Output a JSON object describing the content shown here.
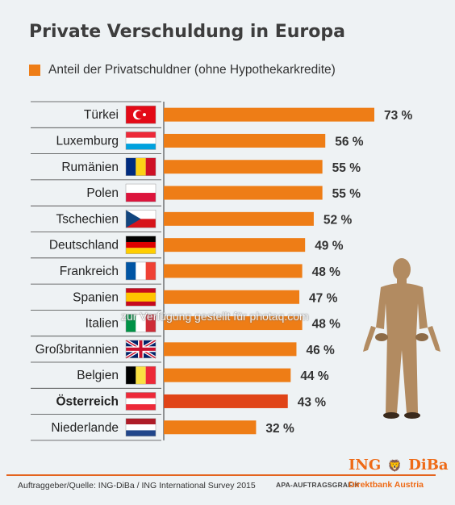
{
  "title": "Private Verschuldung in Europa",
  "legend_label": "Anteil der Privatschuldner (ohne Hypothekarkredite)",
  "colors": {
    "bar": "#ee7d16",
    "highlight_bar": "#e04418",
    "accent": "#ee6a16"
  },
  "chart_data": {
    "type": "bar",
    "orientation": "horizontal",
    "title": "Private Verschuldung in Europa",
    "series": [
      {
        "name": "Anteil der Privatschuldner (ohne Hypothekarkredite)",
        "values": [
          73,
          56,
          55,
          55,
          52,
          49,
          48,
          47,
          48,
          46,
          44,
          43,
          32
        ]
      }
    ],
    "categories": [
      "Türkei",
      "Luxemburg",
      "Rumänien",
      "Polen",
      "Tschechien",
      "Deutschland",
      "Frankreich",
      "Spanien",
      "Italien",
      "Großbritannien",
      "Belgien",
      "Österreich",
      "Niederlande"
    ],
    "value_labels": [
      "73 %",
      "56 %",
      "55 %",
      "55 %",
      "52 %",
      "49 %",
      "48 %",
      "47 %",
      "48 %",
      "46 %",
      "44 %",
      "43 %",
      "32 %"
    ],
    "highlight": "Österreich",
    "flags": [
      "flag-turkey-icon",
      "flag-luxembourg-icon",
      "flag-romania-icon",
      "flag-poland-icon",
      "flag-czech-icon",
      "flag-germany-icon",
      "flag-france-icon",
      "flag-spain-icon",
      "flag-italy-icon",
      "flag-uk-icon",
      "flag-belgium-icon",
      "flag-austria-icon",
      "flag-netherlands-icon"
    ],
    "xlim": [
      0,
      73
    ],
    "grid": false,
    "legend_position": "top"
  },
  "watermark": "zur Verfügung gestellt für photaq.com",
  "footer": {
    "source": "Auftraggeber/Quelle: ING-DiBa / ING International Survey 2015",
    "apa": "APA-AUFTRAGSGRAFIK",
    "brand_left": "ING",
    "brand_right": "DiBa",
    "brand_sub": "Direktbank Austria"
  }
}
